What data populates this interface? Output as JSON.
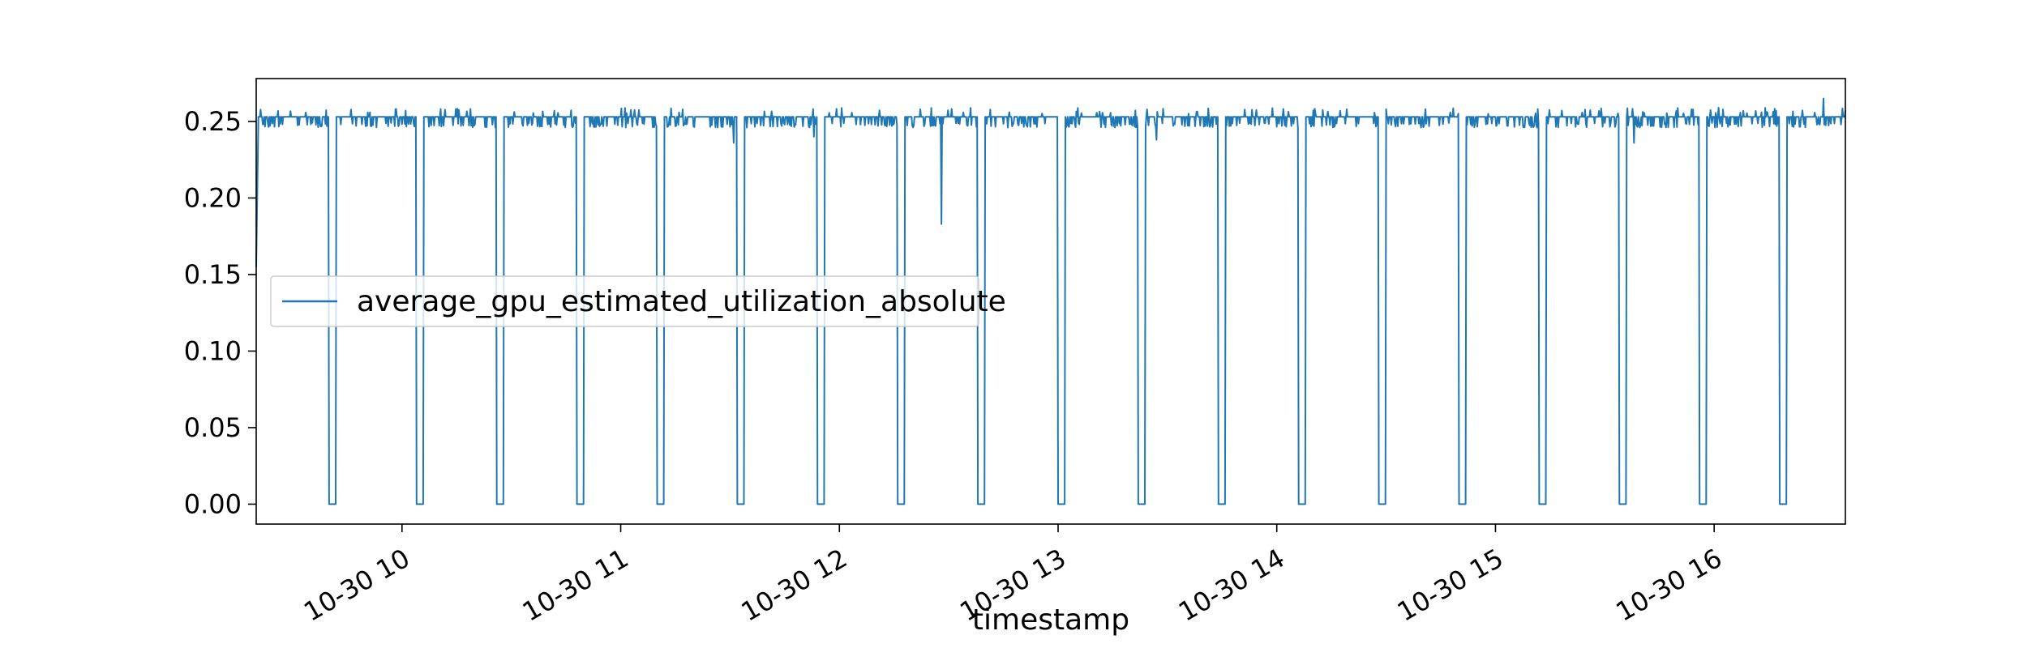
{
  "chart_data": {
    "type": "line",
    "title": "",
    "xlabel": "timestamp",
    "ylabel": "",
    "x_axis": {
      "type": "time",
      "range": [
        "10-30 09:20",
        "10-30 16:36"
      ],
      "ticks": [
        {
          "value": "10-30 10:00",
          "label": "10-30 10"
        },
        {
          "value": "10-30 11:00",
          "label": "10-30 11"
        },
        {
          "value": "10-30 12:00",
          "label": "10-30 12"
        },
        {
          "value": "10-30 13:00",
          "label": "10-30 13"
        },
        {
          "value": "10-30 14:00",
          "label": "10-30 14"
        },
        {
          "value": "10-30 15:00",
          "label": "10-30 15"
        },
        {
          "value": "10-30 16:00",
          "label": "10-30 16"
        }
      ]
    },
    "y_axis": {
      "range": [
        -0.013,
        0.278
      ],
      "ticks": [
        {
          "value": 0.0,
          "label": "0.00"
        },
        {
          "value": 0.05,
          "label": "0.05"
        },
        {
          "value": 0.1,
          "label": "0.10"
        },
        {
          "value": 0.15,
          "label": "0.15"
        },
        {
          "value": 0.2,
          "label": "0.20"
        },
        {
          "value": 0.25,
          "label": "0.25"
        }
      ]
    },
    "grid": false,
    "legend": {
      "placement": "center-left",
      "entries": [
        "average_gpu_estimated_utilization_absolute"
      ]
    },
    "series": [
      {
        "name": "average_gpu_estimated_utilization_absolute",
        "color": "#1f77b4",
        "baseline": 0.253,
        "noise_low": 0.246,
        "noise_high": 0.255,
        "start_value": 0.155,
        "drops_to_zero_at": [
          "10-30 09:40",
          "10-30 10:04",
          "10-30 10:26",
          "10-30 10:48",
          "10-30 11:10",
          "10-30 11:32",
          "10-30 11:54",
          "10-30 12:16",
          "10-30 12:38",
          "10-30 13:00",
          "10-30 13:22",
          "10-30 13:44",
          "10-30 14:06",
          "10-30 14:28",
          "10-30 14:50",
          "10-30 15:12",
          "10-30 15:34",
          "10-30 15:56",
          "10-30 16:18"
        ],
        "drop_duration_minutes": 2,
        "minor_dips": [
          {
            "time": "10-30 12:28",
            "value": 0.183
          },
          {
            "time": "10-30 11:31",
            "value": 0.236
          },
          {
            "time": "10-30 11:53",
            "value": 0.24
          },
          {
            "time": "10-30 13:27",
            "value": 0.238
          },
          {
            "time": "10-30 15:38",
            "value": 0.236
          }
        ],
        "peak": {
          "time": "10-30 16:30",
          "value": 0.265
        }
      }
    ]
  }
}
